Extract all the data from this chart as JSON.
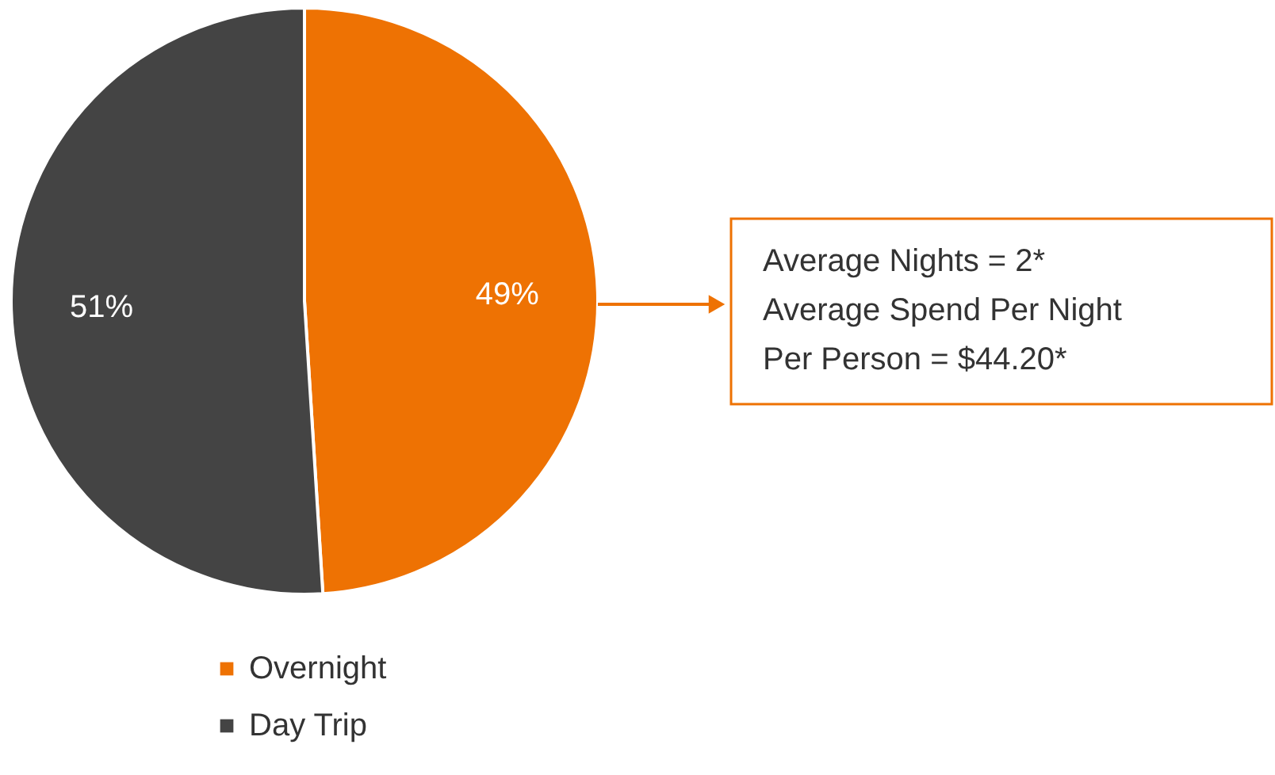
{
  "chart_data": {
    "type": "pie",
    "categories": [
      "Overnight",
      "Day Trip"
    ],
    "values": [
      49,
      51
    ],
    "colors": [
      "#ee7203",
      "#444444"
    ],
    "value_labels": [
      "49%",
      "51%"
    ],
    "legend": "bottom",
    "annotations": [
      "Average Nights = 2*\nAverage Spend Per Night\nPer Person = $44.20*"
    ]
  }
}
